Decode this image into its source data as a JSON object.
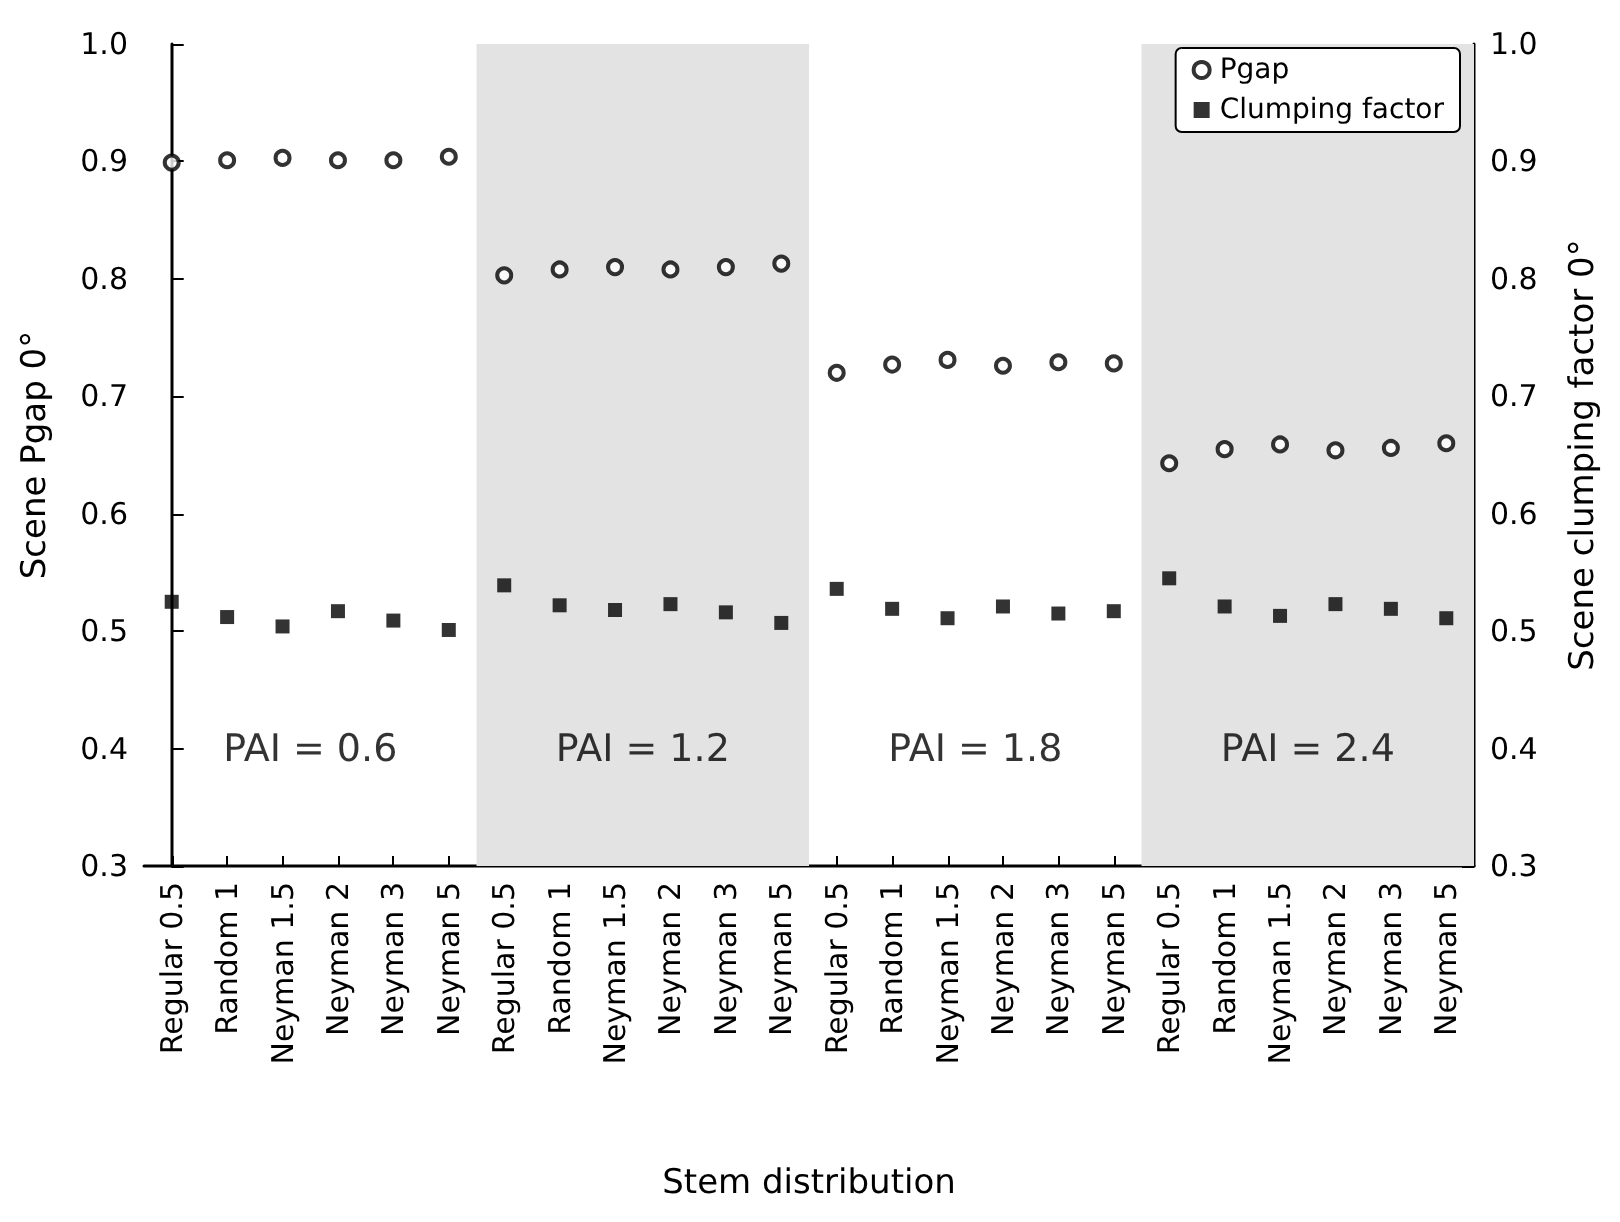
{
  "chart_data": {
    "type": "scatter",
    "xlabel": "Stem distribution",
    "ylabel": "Scene Pgap 0°",
    "y2label": "Scene clumping factor 0°",
    "categories": [
      "Regular 0.5",
      "Random 1",
      "Neyman 1.5",
      "Neyman 2",
      "Neyman 3",
      "Neyman 5",
      "Regular 0.5",
      "Random 1",
      "Neyman 1.5",
      "Neyman 2",
      "Neyman 3",
      "Neyman 5",
      "Regular 0.5",
      "Random 1",
      "Neyman 1.5",
      "Neyman 2",
      "Neyman 3",
      "Neyman 5",
      "Regular 0.5",
      "Random 1",
      "Neyman 1.5",
      "Neyman 2",
      "Neyman 3",
      "Neyman 5"
    ],
    "series": [
      {
        "name": "Pgap",
        "color": "#000000",
        "marker": "circle",
        "values": [
          0.899,
          0.901,
          0.903,
          0.901,
          0.901,
          0.904,
          0.803,
          0.808,
          0.81,
          0.808,
          0.81,
          0.813,
          0.72,
          0.727,
          0.731,
          0.726,
          0.729,
          0.728,
          0.643,
          0.655,
          0.659,
          0.654,
          0.656,
          0.66
        ]
      },
      {
        "name": "Clumping factor",
        "color": "#000000",
        "marker": "square",
        "axis": "y2",
        "values": [
          0.525,
          0.512,
          0.504,
          0.517,
          0.509,
          0.501,
          0.539,
          0.522,
          0.518,
          0.523,
          0.516,
          0.507,
          0.536,
          0.519,
          0.511,
          0.521,
          0.515,
          0.517,
          0.545,
          0.521,
          0.513,
          0.523,
          0.519,
          0.511
        ]
      }
    ],
    "annotations": [
      "PAI = 0.6",
      "PAI = 1.2",
      "PAI = 1.8",
      "PAI = 2.4"
    ],
    "ylim": [
      0.3,
      1.0
    ],
    "yticks": [
      0.3,
      0.4,
      0.5,
      0.6,
      0.7,
      0.8,
      0.9,
      {
        "value": 1.0,
        "label": "1.0"
      }
    ],
    "y2lim": [
      0.3,
      1.0
    ],
    "y2ticks": [
      0.3,
      0.4,
      0.5,
      0.6,
      0.7,
      0.8,
      0.9,
      {
        "value": 1.0,
        "label": "1.0"
      }
    ],
    "legend": "top right",
    "grid": false
  }
}
